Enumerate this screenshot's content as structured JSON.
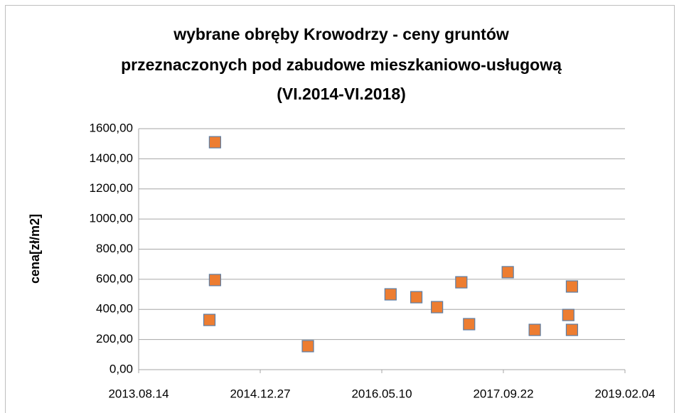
{
  "chart_data": {
    "type": "scatter",
    "title": [
      "wybrane obręby Krowodrzy - ceny gruntów",
      "przeznaczonych pod zabudowe mieszkaniowo-usługową",
      "(VI.2014-VI.2018)"
    ],
    "y_label": "cena[zł/m2]",
    "series": [
      {
        "color": "#ED7D31",
        "x": [
          "2014.06.01",
          "2014.06.24",
          "2014.06.24",
          "2015.07.11",
          "2016.06.15",
          "2016.09.29",
          "2016.12.23",
          "2017.04.02",
          "2017.05.04",
          "2017.10.10",
          "2018.01.29",
          "2018.06.16",
          "2018.07.01",
          "2018.07.01"
        ],
        "values": [
          330,
          1510,
          595,
          156,
          500,
          481,
          415,
          580,
          302,
          647,
          264,
          363,
          552,
          264
        ]
      }
    ],
    "xlim": [
      "2013.08.14",
      "2019.02.04"
    ],
    "xticks": [
      "2013.08.14",
      "2014.12.27",
      "2016.05.10",
      "2017.09.22",
      "2019.02.04"
    ],
    "ylim": [
      0,
      1600
    ],
    "yticks": [
      {
        "value": 0,
        "label": "0,00"
      },
      {
        "value": 200,
        "label": "200,00"
      },
      {
        "value": 400,
        "label": "400,00"
      },
      {
        "value": 600,
        "label": "600,00"
      },
      {
        "value": 800,
        "label": "800,00"
      },
      {
        "value": 1000,
        "label": "1000,00"
      },
      {
        "value": 1200,
        "label": "1200,00"
      },
      {
        "value": 1400,
        "label": "1400,00"
      },
      {
        "value": 1600,
        "label": "1600,00"
      }
    ],
    "grid": true
  }
}
